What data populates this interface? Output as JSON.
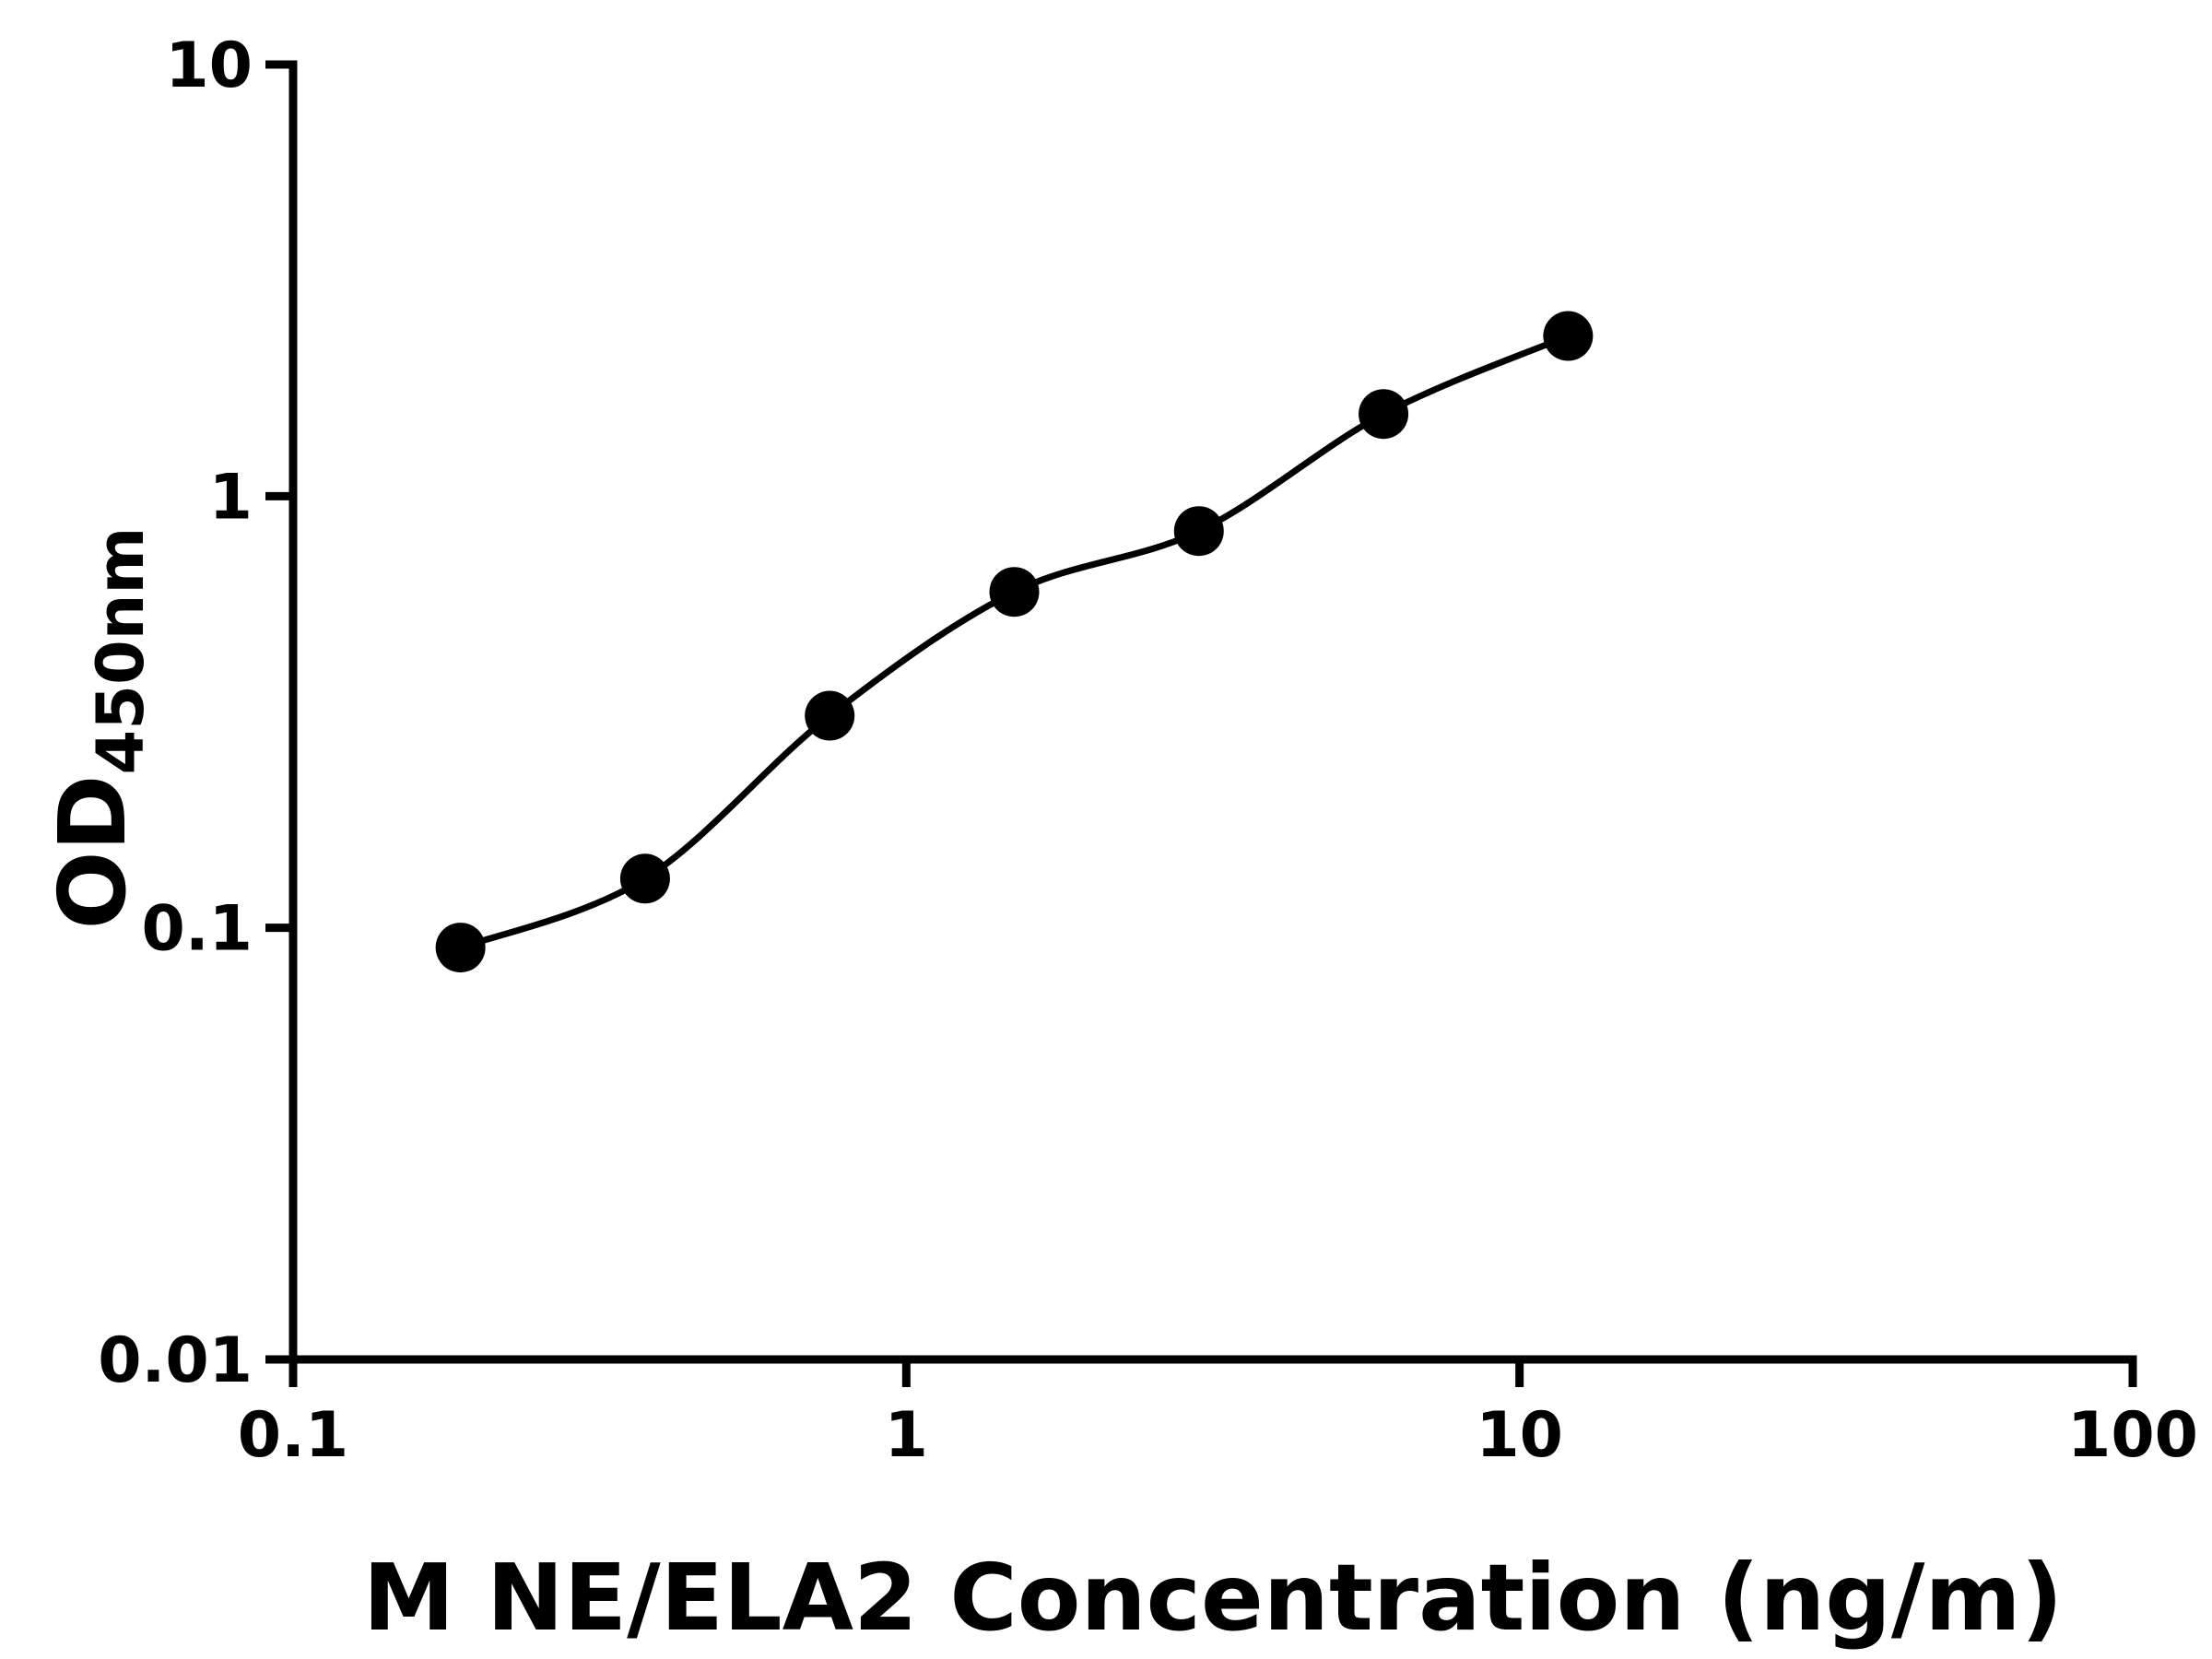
{
  "chart_data": {
    "type": "scatter",
    "description": "ELISA standard curve, log-log axes, black filled circle markers with smooth fitted line",
    "title": "",
    "xlabel": "M NE/ELA2 Concentration (ng/m)",
    "ylabel_main": "OD",
    "ylabel_sub": "450nm",
    "xscale": "log",
    "yscale": "log",
    "xlim": [
      0.1,
      100
    ],
    "ylim": [
      0.01,
      10
    ],
    "xticks": [
      0.1,
      1,
      10,
      100
    ],
    "xtick_labels": [
      "0.1",
      "1",
      "10",
      "100"
    ],
    "yticks": [
      0.01,
      0.1,
      1,
      10
    ],
    "ytick_labels": [
      "0.01",
      "0.1",
      "1",
      "10"
    ],
    "grid": false,
    "legend": false,
    "series": [
      {
        "name": "standard-curve-points",
        "x": [
          0.1875,
          0.375,
          0.75,
          1.5,
          3,
          6,
          12
        ],
        "y": [
          0.09,
          0.13,
          0.31,
          0.6,
          0.83,
          1.55,
          2.35
        ]
      }
    ],
    "colors": {
      "marker": "#000000",
      "line": "#000000",
      "axis": "#000000",
      "background": "#ffffff"
    }
  }
}
